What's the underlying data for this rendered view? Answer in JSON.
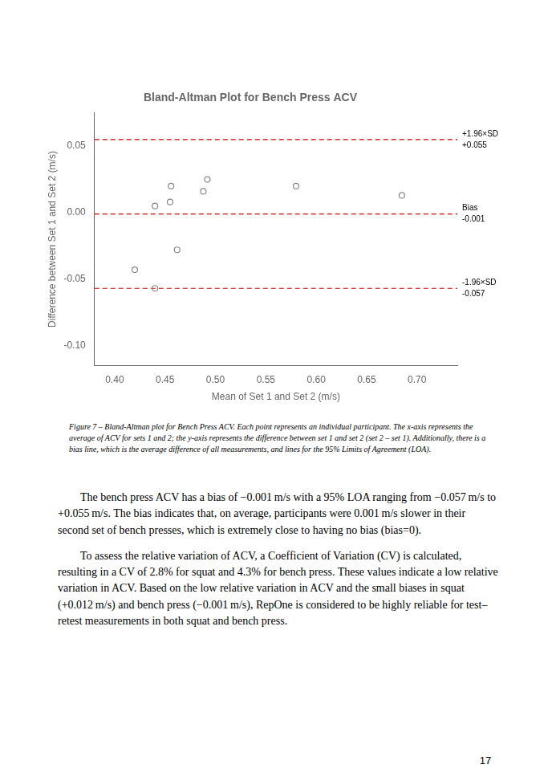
{
  "chart_data": {
    "type": "scatter",
    "title": "Bland-Altman Plot for Bench Press ACV",
    "xlabel": "Mean of Set 1 and Set 2 (m/s)",
    "ylabel": "Difference between Set 1 and Set 2 (m/s)",
    "x": [
      0.42,
      0.44,
      0.44,
      0.455,
      0.456,
      0.462,
      0.488,
      0.492,
      0.58,
      0.685
    ],
    "values": [
      -0.043,
      0.005,
      -0.057,
      0.008,
      0.02,
      -0.028,
      0.016,
      0.025,
      0.02,
      0.013
    ],
    "color": "#888888",
    "marker": "circle",
    "xlim": [
      0.38,
      0.74
    ],
    "ylim": [
      -0.115,
      0.075
    ],
    "xticks": [
      {
        "value": 0.4,
        "label": "0.40"
      },
      {
        "value": 0.45,
        "label": "0.45"
      },
      {
        "value": 0.5,
        "label": "0.50"
      },
      {
        "value": 0.55,
        "label": "0.55"
      },
      {
        "value": 0.6,
        "label": "0.60"
      },
      {
        "value": 0.65,
        "label": "0.65"
      },
      {
        "value": 0.7,
        "label": "0.70"
      }
    ],
    "yticks": [
      {
        "value": -0.1,
        "label": "-0.10"
      },
      {
        "value": -0.05,
        "label": "-0.05"
      },
      {
        "value": 0.0,
        "label": "0.00"
      },
      {
        "value": 0.05,
        "label": "0.05"
      }
    ],
    "grid": false,
    "legend": false,
    "reference_lines": {
      "color": "#cc0000",
      "line_style": "dashed",
      "lines": [
        {
          "value": 0.055,
          "label": "+1.96×SD",
          "value_label": "+0.055"
        },
        {
          "value": -0.001,
          "label": "Bias",
          "value_label": "-0.001"
        },
        {
          "value": -0.057,
          "label": "-1.96×SD",
          "value_label": "-0.057"
        }
      ]
    }
  },
  "caption": "Figure 7 – Bland-Altman plot for Bench Press ACV. Each point represents an individual participant. The x-axis represents the average of ACV for sets 1 and 2; the y-axis represents the difference between set 1 and set 2 (set 2 – set 1). Additionally, there is a bias line, which is the average difference of all measurements, and lines for the 95% Limits of Agreement (LOA).",
  "paragraphs": [
    "The bench press ACV has a bias of −0.001 m/s with a 95% LOA ranging from −0.057 m/s to +0.055 m/s. The bias indicates that, on average, participants were 0.001 m/s slower in their second set of bench presses, which is extremely close to having no bias (bias=0).",
    "To assess the relative variation of ACV, a Coefficient of Variation (CV) is calculated, resulting in a CV of 2.8% for squat and 4.3% for bench press. These values indicate a low relative variation in ACV. Based on the low relative variation in ACV and the small biases in squat (+0.012 m/s) and bench press (−0.001 m/s), RepOne is considered to be highly reliable for test–retest measurements in both squat and bench press."
  ],
  "page_number": "17"
}
